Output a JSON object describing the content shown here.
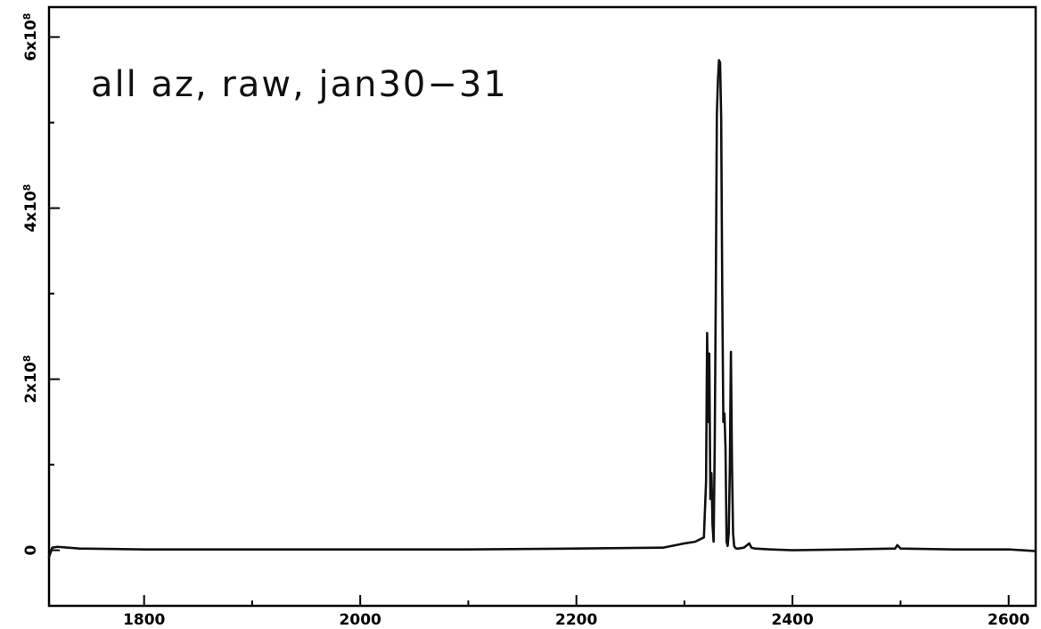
{
  "chart_data": {
    "type": "line",
    "title": "all az, raw, jan30−31",
    "xlabel": "",
    "ylabel": "",
    "xlim": [
      1712,
      2625
    ],
    "ylim": [
      -65000000,
      635000000
    ],
    "x_ticks": [
      1800,
      2000,
      2200,
      2400,
      2600
    ],
    "x_tick_labels": [
      "1800",
      "2000",
      "2200",
      "2400",
      "2600"
    ],
    "y_ticks": [
      0,
      200000000,
      400000000,
      600000000
    ],
    "y_tick_labels": [
      {
        "mant": "0",
        "exp": ""
      },
      {
        "mant": "2x10",
        "exp": "8"
      },
      {
        "mant": "4x10",
        "exp": "8"
      },
      {
        "mant": "6x10",
        "exp": "8"
      }
    ],
    "grid": false,
    "series": [
      {
        "x": [
          1712,
          1715,
          1720,
          1740,
          1800,
          1900,
          2000,
          2100,
          2200,
          2280,
          2300,
          2310,
          2318,
          2320,
          2321,
          2322,
          2323,
          2324,
          2325,
          2326,
          2327,
          2328,
          2329,
          2330,
          2331,
          2332,
          2333,
          2334,
          2335,
          2336,
          2337,
          2338,
          2339,
          2340,
          2341,
          2342,
          2343,
          2344,
          2345,
          2346,
          2347,
          2348,
          2350,
          2355,
          2360,
          2362,
          2365,
          2380,
          2400,
          2450,
          2495,
          2497,
          2500,
          2550,
          2600,
          2625
        ],
        "y": [
          -8000000,
          3000000,
          4000000,
          2000000,
          1000000,
          1000000,
          1000000,
          1000000,
          2000000,
          3000000,
          8000000,
          10000000,
          15000000,
          80000000,
          254000000,
          150000000,
          230000000,
          60000000,
          90000000,
          30000000,
          10000000,
          120000000,
          300000000,
          510000000,
          550000000,
          573000000,
          570000000,
          505000000,
          300000000,
          150000000,
          160000000,
          120000000,
          10000000,
          5000000,
          20000000,
          95000000,
          232000000,
          100000000,
          20000000,
          5000000,
          3000000,
          2000000,
          2000000,
          3000000,
          8000000,
          3000000,
          2000000,
          1000000,
          0,
          1000000,
          2000000,
          6000000,
          2000000,
          1000000,
          1000000,
          -1000000
        ]
      }
    ]
  }
}
